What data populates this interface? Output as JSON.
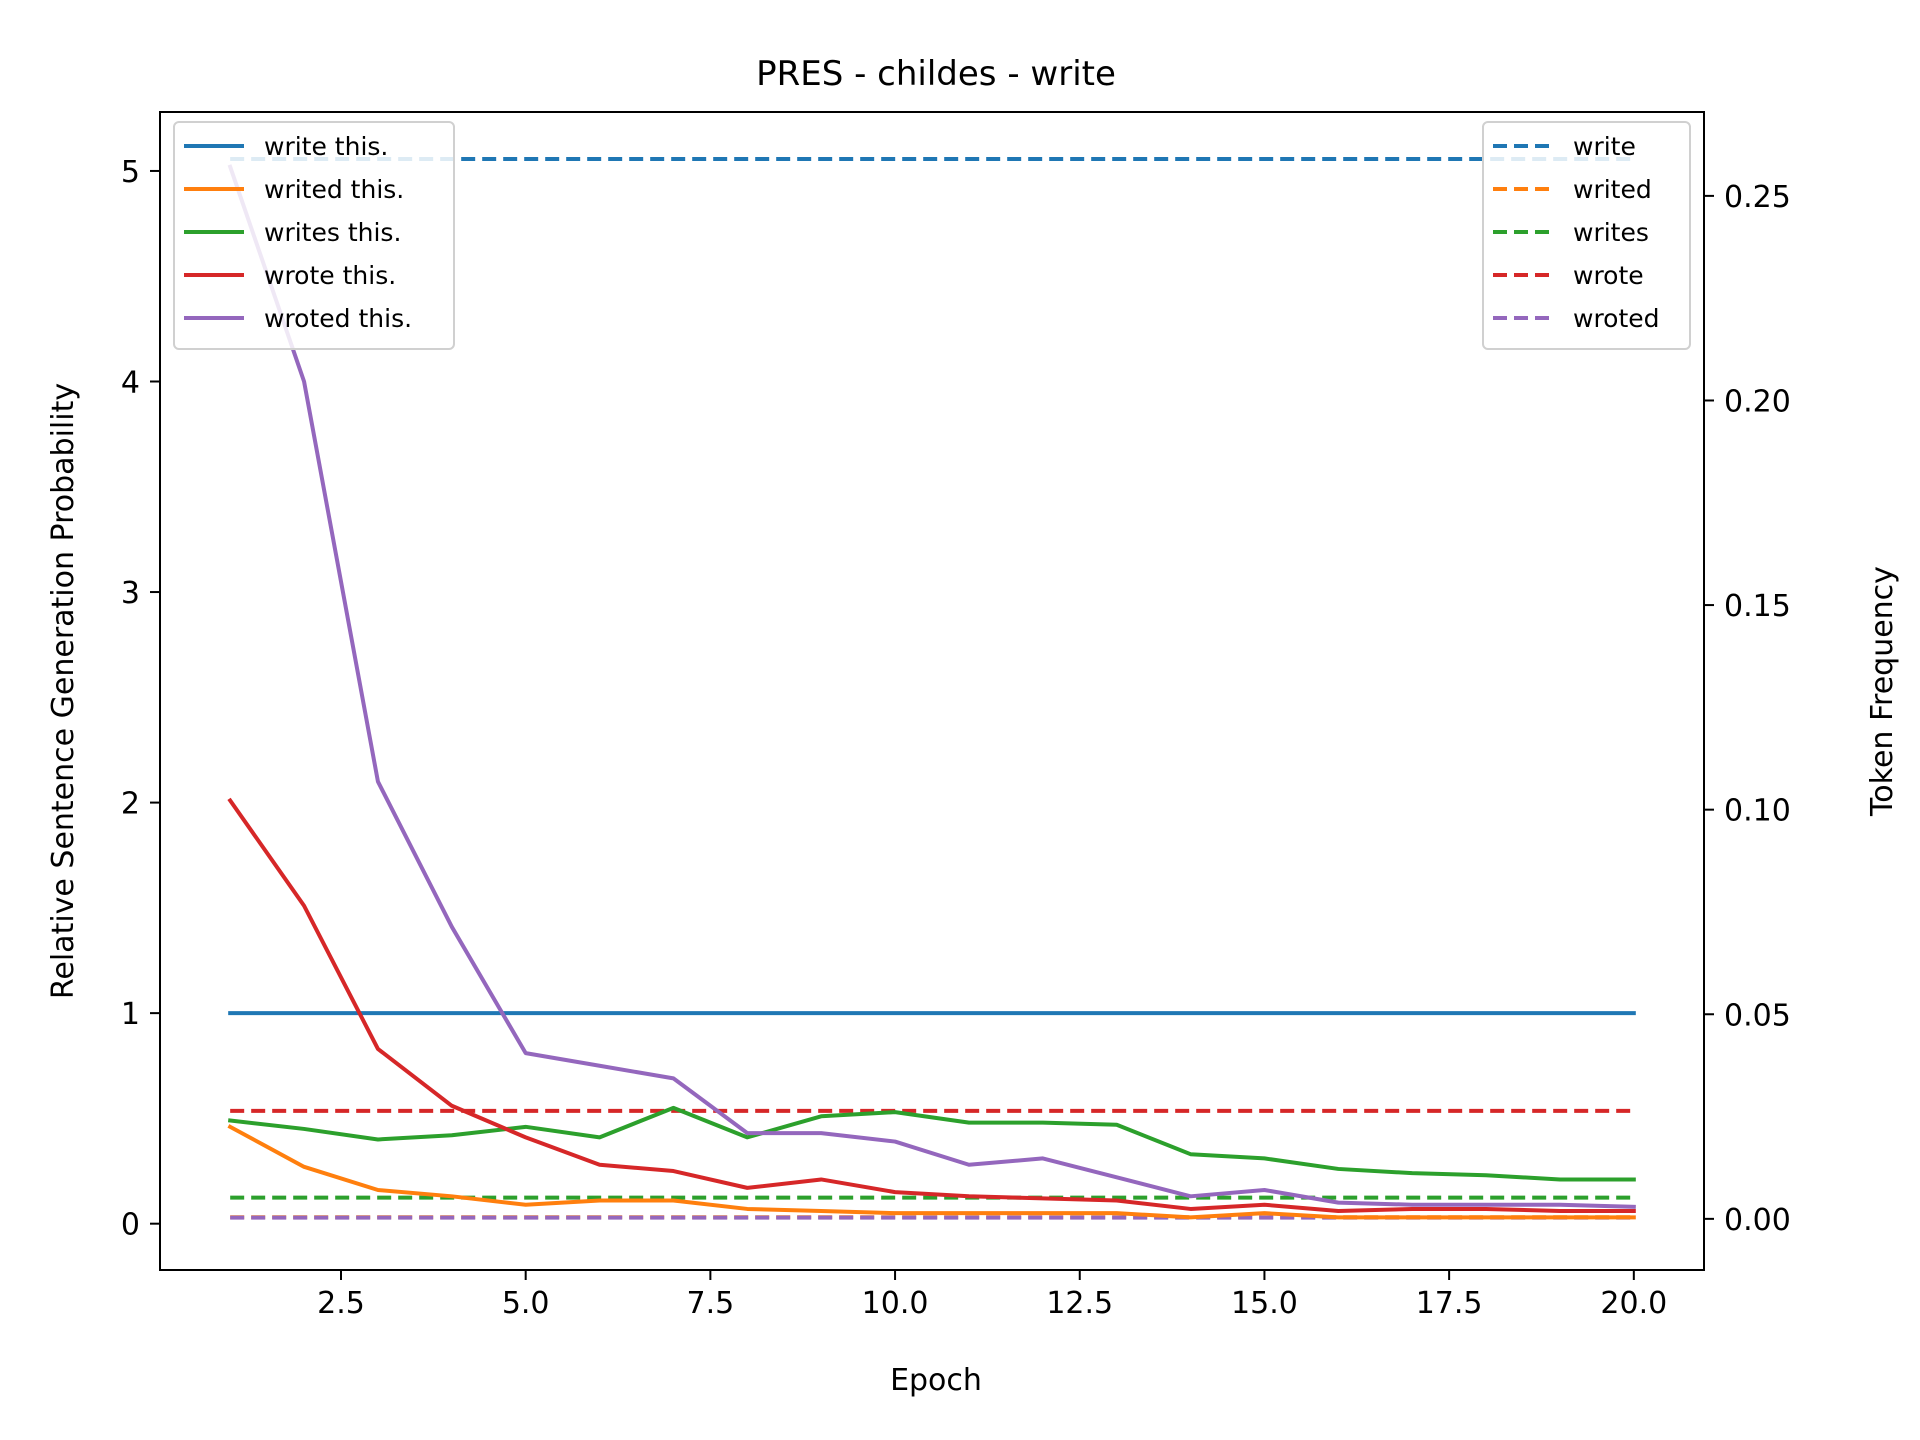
{
  "chart_data": {
    "type": "line",
    "title": "PRES - childes - write",
    "xlabel": "Epoch",
    "ylabel": "Relative Sentence Generation Probability",
    "y2label": "Token Frequency",
    "xlim": [
      0.05,
      20.95
    ],
    "ylim": [
      -0.22,
      5.28
    ],
    "y2lim": [
      -0.0125,
      0.2705
    ],
    "xticks": [
      "2.5",
      "5.0",
      "7.5",
      "10.0",
      "12.5",
      "15.0",
      "17.5",
      "20.0"
    ],
    "yticks": [
      "0",
      "1",
      "2",
      "3",
      "4",
      "5"
    ],
    "y2ticks": [
      "0.00",
      "0.05",
      "0.10",
      "0.15",
      "0.20",
      "0.25"
    ],
    "x": [
      1,
      2,
      3,
      4,
      5,
      6,
      7,
      8,
      9,
      10,
      11,
      12,
      13,
      14,
      15,
      16,
      17,
      18,
      19,
      20
    ],
    "series": [
      {
        "name": "write this.",
        "color": "#1f77b4",
        "values": [
          1,
          1,
          1,
          1,
          1,
          1,
          1,
          1,
          1,
          1,
          1,
          1,
          1,
          1,
          1,
          1,
          1,
          1,
          1,
          1
        ]
      },
      {
        "name": "writed this.",
        "color": "#ff7f0e",
        "values": [
          0.46,
          0.27,
          0.16,
          0.13,
          0.09,
          0.11,
          0.11,
          0.07,
          0.06,
          0.05,
          0.05,
          0.05,
          0.05,
          0.03,
          0.05,
          0.03,
          0.03,
          0.03,
          0.03,
          0.03
        ]
      },
      {
        "name": "writes this.",
        "color": "#2ca02c",
        "values": [
          0.49,
          0.45,
          0.4,
          0.42,
          0.46,
          0.41,
          0.55,
          0.41,
          0.51,
          0.53,
          0.48,
          0.48,
          0.47,
          0.33,
          0.31,
          0.26,
          0.24,
          0.23,
          0.21,
          0.21
        ]
      },
      {
        "name": "wrote this.",
        "color": "#d62728",
        "values": [
          2.01,
          1.51,
          0.83,
          0.56,
          0.41,
          0.28,
          0.25,
          0.17,
          0.21,
          0.15,
          0.13,
          0.12,
          0.11,
          0.07,
          0.09,
          0.06,
          0.07,
          0.07,
          0.06,
          0.06
        ]
      },
      {
        "name": "wroted this.",
        "color": "#9467bd",
        "values": [
          5.02,
          4.0,
          2.1,
          1.41,
          0.81,
          0.75,
          0.69,
          0.43,
          0.43,
          0.39,
          0.28,
          0.31,
          0.22,
          0.13,
          0.16,
          0.1,
          0.09,
          0.09,
          0.09,
          0.08
        ]
      }
    ],
    "frequency_series": [
      {
        "name": "write",
        "color": "#1f77b4",
        "value": 0.259
      },
      {
        "name": "writed",
        "color": "#ff7f0e",
        "value": 0.0004
      },
      {
        "name": "writes",
        "color": "#2ca02c",
        "value": 0.0052
      },
      {
        "name": "wrote",
        "color": "#d62728",
        "value": 0.0264
      },
      {
        "name": "wroted",
        "color": "#9467bd",
        "value": 0.0003
      }
    ],
    "legend_left_placement": "upper left",
    "legend_right_placement": "upper right",
    "grid": false
  }
}
